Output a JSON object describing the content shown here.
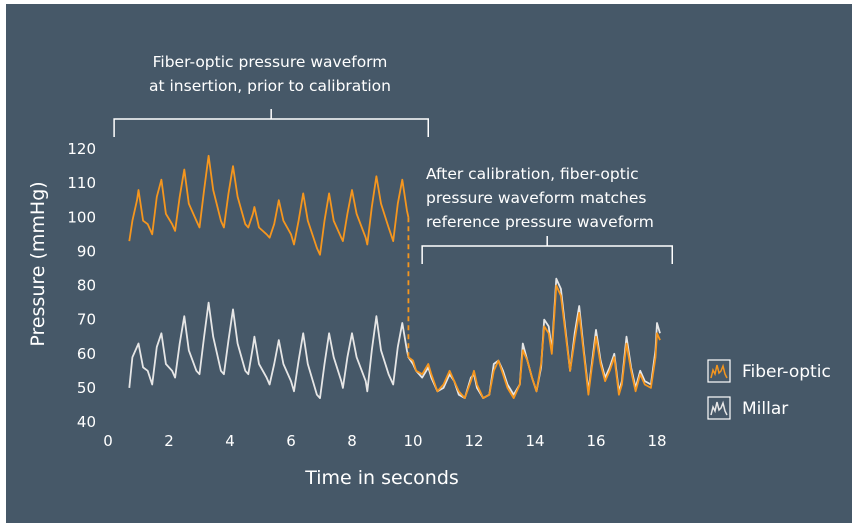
{
  "chart_data": {
    "type": "line",
    "xlabel": "Time in seconds",
    "ylabel": "Pressure (mmHg)",
    "xlim": [
      0,
      18
    ],
    "ylim": [
      40,
      120
    ],
    "xticks": [
      0,
      2,
      4,
      6,
      8,
      10,
      12,
      14,
      16,
      18
    ],
    "yticks": [
      40,
      50,
      60,
      70,
      80,
      90,
      100,
      110,
      120
    ],
    "grid": false,
    "legend_position": "right",
    "colors": {
      "background": "#465868",
      "fiber_optic": "#f5961e",
      "millar": "#e6e6e6",
      "text": "#ffffff"
    },
    "annotations": [
      {
        "lines": [
          "Fiber-optic pressure waveform",
          "at insertion, prior to calibration"
        ],
        "span": [
          0.2,
          10.5
        ]
      },
      {
        "lines": [
          "After calibration, fiber-optic",
          "pressure waveform matches",
          "reference pressure waveform"
        ],
        "span": [
          10.3,
          18.5
        ]
      }
    ],
    "series": [
      {
        "name": "Millar",
        "color": "#e6e6e6",
        "points": [
          [
            0.7,
            50
          ],
          [
            0.8,
            59
          ],
          [
            1.0,
            63
          ],
          [
            1.15,
            56
          ],
          [
            1.3,
            55
          ],
          [
            1.45,
            51
          ],
          [
            1.6,
            62
          ],
          [
            1.75,
            66
          ],
          [
            1.9,
            57
          ],
          [
            2.1,
            55
          ],
          [
            2.2,
            53
          ],
          [
            2.35,
            63
          ],
          [
            2.5,
            71
          ],
          [
            2.65,
            61
          ],
          [
            2.9,
            55
          ],
          [
            3.0,
            54
          ],
          [
            3.15,
            65
          ],
          [
            3.3,
            75
          ],
          [
            3.45,
            65
          ],
          [
            3.7,
            55
          ],
          [
            3.8,
            54
          ],
          [
            3.95,
            64
          ],
          [
            4.1,
            73
          ],
          [
            4.25,
            63
          ],
          [
            4.5,
            55
          ],
          [
            4.6,
            54
          ],
          [
            4.75,
            62
          ],
          [
            4.8,
            65
          ],
          [
            4.95,
            57
          ],
          [
            5.2,
            53
          ],
          [
            5.3,
            51
          ],
          [
            5.45,
            57
          ],
          [
            5.6,
            64
          ],
          [
            5.75,
            57
          ],
          [
            6.0,
            52
          ],
          [
            6.1,
            49
          ],
          [
            6.25,
            58
          ],
          [
            6.4,
            66
          ],
          [
            6.55,
            57
          ],
          [
            6.85,
            48
          ],
          [
            6.95,
            47
          ],
          [
            7.1,
            57
          ],
          [
            7.25,
            66
          ],
          [
            7.4,
            59
          ],
          [
            7.65,
            52
          ],
          [
            7.7,
            50
          ],
          [
            7.85,
            59
          ],
          [
            8.0,
            66
          ],
          [
            8.15,
            59
          ],
          [
            8.45,
            52
          ],
          [
            8.5,
            49
          ],
          [
            8.65,
            61
          ],
          [
            8.8,
            71
          ],
          [
            8.95,
            61
          ],
          [
            9.2,
            54
          ],
          [
            9.35,
            51
          ],
          [
            9.5,
            62
          ],
          [
            9.65,
            69
          ],
          [
            9.8,
            61
          ],
          [
            9.85,
            59
          ],
          [
            10.0,
            57
          ],
          [
            10.1,
            55
          ],
          [
            10.3,
            53
          ],
          [
            10.5,
            56
          ],
          [
            10.6,
            53
          ],
          [
            10.8,
            49
          ],
          [
            11.0,
            50
          ],
          [
            11.2,
            54
          ],
          [
            11.35,
            52
          ],
          [
            11.5,
            48
          ],
          [
            11.7,
            47
          ],
          [
            11.9,
            53
          ],
          [
            12.0,
            54
          ],
          [
            12.1,
            50
          ],
          [
            12.3,
            47
          ],
          [
            12.5,
            48
          ],
          [
            12.65,
            57
          ],
          [
            12.8,
            58
          ],
          [
            12.95,
            55
          ],
          [
            13.1,
            51
          ],
          [
            13.3,
            48
          ],
          [
            13.5,
            51
          ],
          [
            13.6,
            63
          ],
          [
            13.75,
            58
          ],
          [
            13.9,
            53
          ],
          [
            14.05,
            49
          ],
          [
            14.2,
            56
          ],
          [
            14.3,
            70
          ],
          [
            14.45,
            68
          ],
          [
            14.55,
            61
          ],
          [
            14.7,
            82
          ],
          [
            14.85,
            79
          ],
          [
            15.0,
            67
          ],
          [
            15.15,
            55
          ],
          [
            15.3,
            66
          ],
          [
            15.45,
            74
          ],
          [
            15.6,
            61
          ],
          [
            15.75,
            49
          ],
          [
            15.85,
            56
          ],
          [
            16.0,
            67
          ],
          [
            16.15,
            58
          ],
          [
            16.3,
            53
          ],
          [
            16.45,
            56
          ],
          [
            16.6,
            60
          ],
          [
            16.75,
            49
          ],
          [
            16.85,
            52
          ],
          [
            17.0,
            65
          ],
          [
            17.15,
            56
          ],
          [
            17.3,
            50
          ],
          [
            17.45,
            55
          ],
          [
            17.6,
            52
          ],
          [
            17.8,
            51
          ],
          [
            17.95,
            61
          ],
          [
            18.0,
            69
          ],
          [
            18.1,
            66
          ]
        ]
      },
      {
        "name": "Fiber-optic",
        "color": "#f5961e",
        "points": [
          [
            0.7,
            93
          ],
          [
            0.8,
            99
          ],
          [
            0.95,
            105
          ],
          [
            1.0,
            108
          ],
          [
            1.15,
            99
          ],
          [
            1.3,
            98
          ],
          [
            1.45,
            95
          ],
          [
            1.6,
            106
          ],
          [
            1.75,
            111
          ],
          [
            1.9,
            101
          ],
          [
            2.1,
            98
          ],
          [
            2.2,
            96
          ],
          [
            2.35,
            106
          ],
          [
            2.5,
            114
          ],
          [
            2.65,
            104
          ],
          [
            2.9,
            99
          ],
          [
            3.0,
            97
          ],
          [
            3.15,
            108
          ],
          [
            3.3,
            118
          ],
          [
            3.45,
            108
          ],
          [
            3.7,
            99
          ],
          [
            3.8,
            97
          ],
          [
            3.95,
            107
          ],
          [
            4.1,
            115
          ],
          [
            4.25,
            106
          ],
          [
            4.5,
            98
          ],
          [
            4.6,
            97
          ],
          [
            4.75,
            101
          ],
          [
            4.8,
            103
          ],
          [
            4.95,
            97
          ],
          [
            5.2,
            95
          ],
          [
            5.3,
            94
          ],
          [
            5.45,
            98
          ],
          [
            5.6,
            105
          ],
          [
            5.75,
            99
          ],
          [
            6.0,
            95
          ],
          [
            6.1,
            92
          ],
          [
            6.25,
            99
          ],
          [
            6.4,
            107
          ],
          [
            6.55,
            99
          ],
          [
            6.85,
            91
          ],
          [
            6.95,
            89
          ],
          [
            7.1,
            99
          ],
          [
            7.25,
            107
          ],
          [
            7.4,
            99
          ],
          [
            7.65,
            94
          ],
          [
            7.7,
            93
          ],
          [
            7.85,
            101
          ],
          [
            8.0,
            108
          ],
          [
            8.15,
            101
          ],
          [
            8.45,
            94
          ],
          [
            8.5,
            92
          ],
          [
            8.65,
            103
          ],
          [
            8.8,
            112
          ],
          [
            8.95,
            104
          ],
          [
            9.2,
            97
          ],
          [
            9.35,
            93
          ],
          [
            9.5,
            104
          ],
          [
            9.65,
            111
          ],
          [
            9.8,
            102
          ],
          [
            9.85,
            100
          ]
        ]
      },
      {
        "name": "Fiber-optic",
        "color": "#f5961e",
        "points": [
          [
            9.85,
            59
          ],
          [
            10.0,
            58
          ],
          [
            10.1,
            55
          ],
          [
            10.3,
            54
          ],
          [
            10.5,
            57
          ],
          [
            10.6,
            54
          ],
          [
            10.8,
            49
          ],
          [
            11.0,
            51
          ],
          [
            11.2,
            55
          ],
          [
            11.35,
            52
          ],
          [
            11.5,
            49
          ],
          [
            11.7,
            47
          ],
          [
            11.9,
            52
          ],
          [
            12.0,
            55
          ],
          [
            12.1,
            51
          ],
          [
            12.3,
            47
          ],
          [
            12.5,
            48
          ],
          [
            12.65,
            55
          ],
          [
            12.8,
            58
          ],
          [
            12.95,
            54
          ],
          [
            13.1,
            50
          ],
          [
            13.3,
            47
          ],
          [
            13.5,
            51
          ],
          [
            13.6,
            61
          ],
          [
            13.75,
            58
          ],
          [
            13.9,
            53
          ],
          [
            14.05,
            49
          ],
          [
            14.2,
            57
          ],
          [
            14.3,
            68
          ],
          [
            14.45,
            66
          ],
          [
            14.55,
            60
          ],
          [
            14.7,
            80
          ],
          [
            14.85,
            77
          ],
          [
            15.0,
            66
          ],
          [
            15.15,
            55
          ],
          [
            15.3,
            64
          ],
          [
            15.45,
            72
          ],
          [
            15.6,
            60
          ],
          [
            15.75,
            48
          ],
          [
            15.85,
            55
          ],
          [
            16.0,
            65
          ],
          [
            16.15,
            57
          ],
          [
            16.3,
            52
          ],
          [
            16.45,
            55
          ],
          [
            16.6,
            59
          ],
          [
            16.75,
            48
          ],
          [
            16.85,
            51
          ],
          [
            17.0,
            63
          ],
          [
            17.15,
            55
          ],
          [
            17.3,
            49
          ],
          [
            17.45,
            54
          ],
          [
            17.6,
            51
          ],
          [
            17.8,
            50
          ],
          [
            17.95,
            59
          ],
          [
            18.0,
            66
          ],
          [
            18.1,
            64
          ]
        ]
      }
    ],
    "legend": [
      {
        "label": "Fiber-optic",
        "color": "#f5961e",
        "icon": "orange-waveform-icon"
      },
      {
        "label": "Millar",
        "color": "#e6e6e6",
        "icon": "white-waveform-icon"
      }
    ]
  }
}
